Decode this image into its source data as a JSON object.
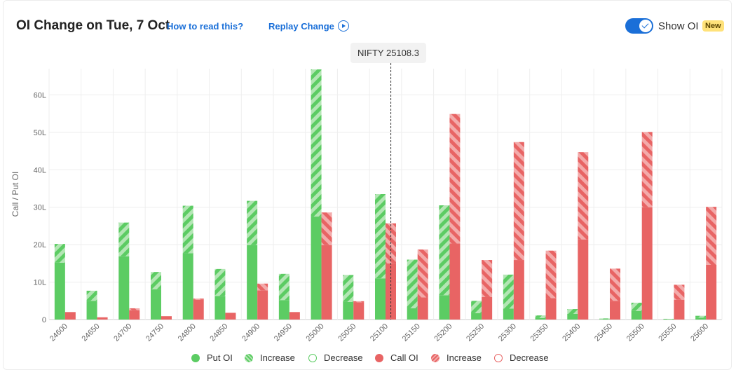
{
  "header": {
    "title": "OI Change on Tue, 7 Oct",
    "how_to_read": "How to read this?",
    "replay": "Replay Change",
    "show_oi": "Show OI",
    "badge": "New",
    "show_oi_on": true
  },
  "spot": {
    "label": "NIFTY 25108.3",
    "value": 25108.3
  },
  "colors": {
    "put": "#5ccc63",
    "put_light": "#b3e6b4",
    "call": "#e86464",
    "call_light": "#f3aaaa",
    "grid": "#eeeeee",
    "axis_text": "#666666"
  },
  "chart_data": {
    "type": "bar",
    "ylabel": "Call / Put OI",
    "ylim": [
      0,
      67
    ],
    "yticks": [
      {
        "v": 0,
        "label": "0"
      },
      {
        "v": 10,
        "label": "10L"
      },
      {
        "v": 20,
        "label": "20L"
      },
      {
        "v": 30,
        "label": "30L"
      },
      {
        "v": 40,
        "label": "40L"
      },
      {
        "v": 50,
        "label": "50L"
      },
      {
        "v": 60,
        "label": "60L"
      }
    ],
    "categories": [
      "24600",
      "24650",
      "24700",
      "24750",
      "24800",
      "24850",
      "24900",
      "24950",
      "25000",
      "25050",
      "25100",
      "25150",
      "25200",
      "25250",
      "25300",
      "25350",
      "25400",
      "25450",
      "25500",
      "25550",
      "25600"
    ],
    "put_oi": [
      15.2,
      5.0,
      16.9,
      8.1,
      17.7,
      6.3,
      19.9,
      5.2,
      27.5,
      4.7,
      11.0,
      3.0,
      6.5,
      1.7,
      2.9,
      0.4,
      1.5,
      0.1,
      2.3,
      0.1,
      0.5
    ],
    "put_total": [
      20.2,
      7.7,
      25.9,
      12.7,
      30.4,
      13.5,
      31.7,
      12.2,
      66.8,
      11.9,
      33.5,
      16.0,
      30.5,
      5.0,
      12.0,
      1.1,
      2.8,
      0.3,
      4.5,
      0.2,
      1.0
    ],
    "call_oi": [
      2.0,
      0.6,
      2.5,
      0.9,
      5.3,
      1.8,
      7.8,
      2.0,
      19.9,
      4.6,
      15.0,
      5.9,
      20.3,
      6.0,
      15.9,
      5.7,
      21.4,
      5.0,
      30.0,
      5.3,
      14.6
    ],
    "call_total": [
      2.0,
      0.6,
      3.0,
      0.9,
      5.6,
      1.8,
      9.6,
      2.0,
      28.6,
      4.9,
      25.7,
      18.7,
      54.9,
      15.9,
      47.4,
      18.4,
      44.7,
      13.6,
      50.1,
      9.3,
      30.1
    ],
    "legend": [
      {
        "label": "Put OI",
        "style": "put-solid"
      },
      {
        "label": "Increase",
        "style": "put-stripe"
      },
      {
        "label": "Decrease",
        "style": "put-outline"
      },
      {
        "label": "Call OI",
        "style": "call-solid"
      },
      {
        "label": "Increase",
        "style": "call-stripe"
      },
      {
        "label": "Decrease",
        "style": "call-outline"
      }
    ]
  }
}
